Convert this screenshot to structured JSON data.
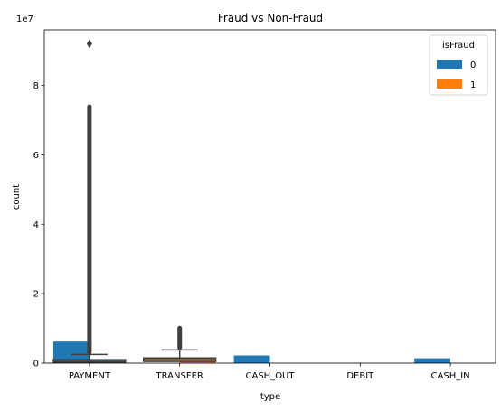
{
  "chart_data": {
    "type": "bar",
    "title": "Fraud vs Non-Fraud",
    "xlabel": "type",
    "ylabel": "count",
    "y_offset_text": "1e7",
    "categories": [
      "PAYMENT",
      "TRANSFER",
      "CASH_OUT",
      "DEBIT",
      "CASH_IN"
    ],
    "ylim": [
      0,
      9.6
    ],
    "y_ticks": [
      "0",
      "2",
      "4",
      "6",
      "8"
    ],
    "legend": {
      "title": "isFraud",
      "placement": "top-right"
    },
    "series": [
      {
        "name": "0",
        "color": "#1f77b4",
        "values": [
          0.62,
          0,
          0.22,
          0,
          0.14
        ]
      },
      {
        "name": "1",
        "color": "#ff7f0e",
        "values": [
          0,
          0.16,
          0,
          0,
          0
        ]
      }
    ],
    "overlay_boxplots": [
      {
        "category": "PAYMENT",
        "q1": 0.02,
        "median": 0.05,
        "q3": 0.1,
        "whisker_high": 0.25,
        "outlier_range": [
          0.25,
          7.4
        ],
        "max_outlier": 9.2
      },
      {
        "category": "TRANSFER",
        "q1": 0.05,
        "median": 0.1,
        "q3": 0.15,
        "whisker_high": 0.38,
        "outlier_range": [
          0.38,
          1.02
        ]
      }
    ]
  }
}
